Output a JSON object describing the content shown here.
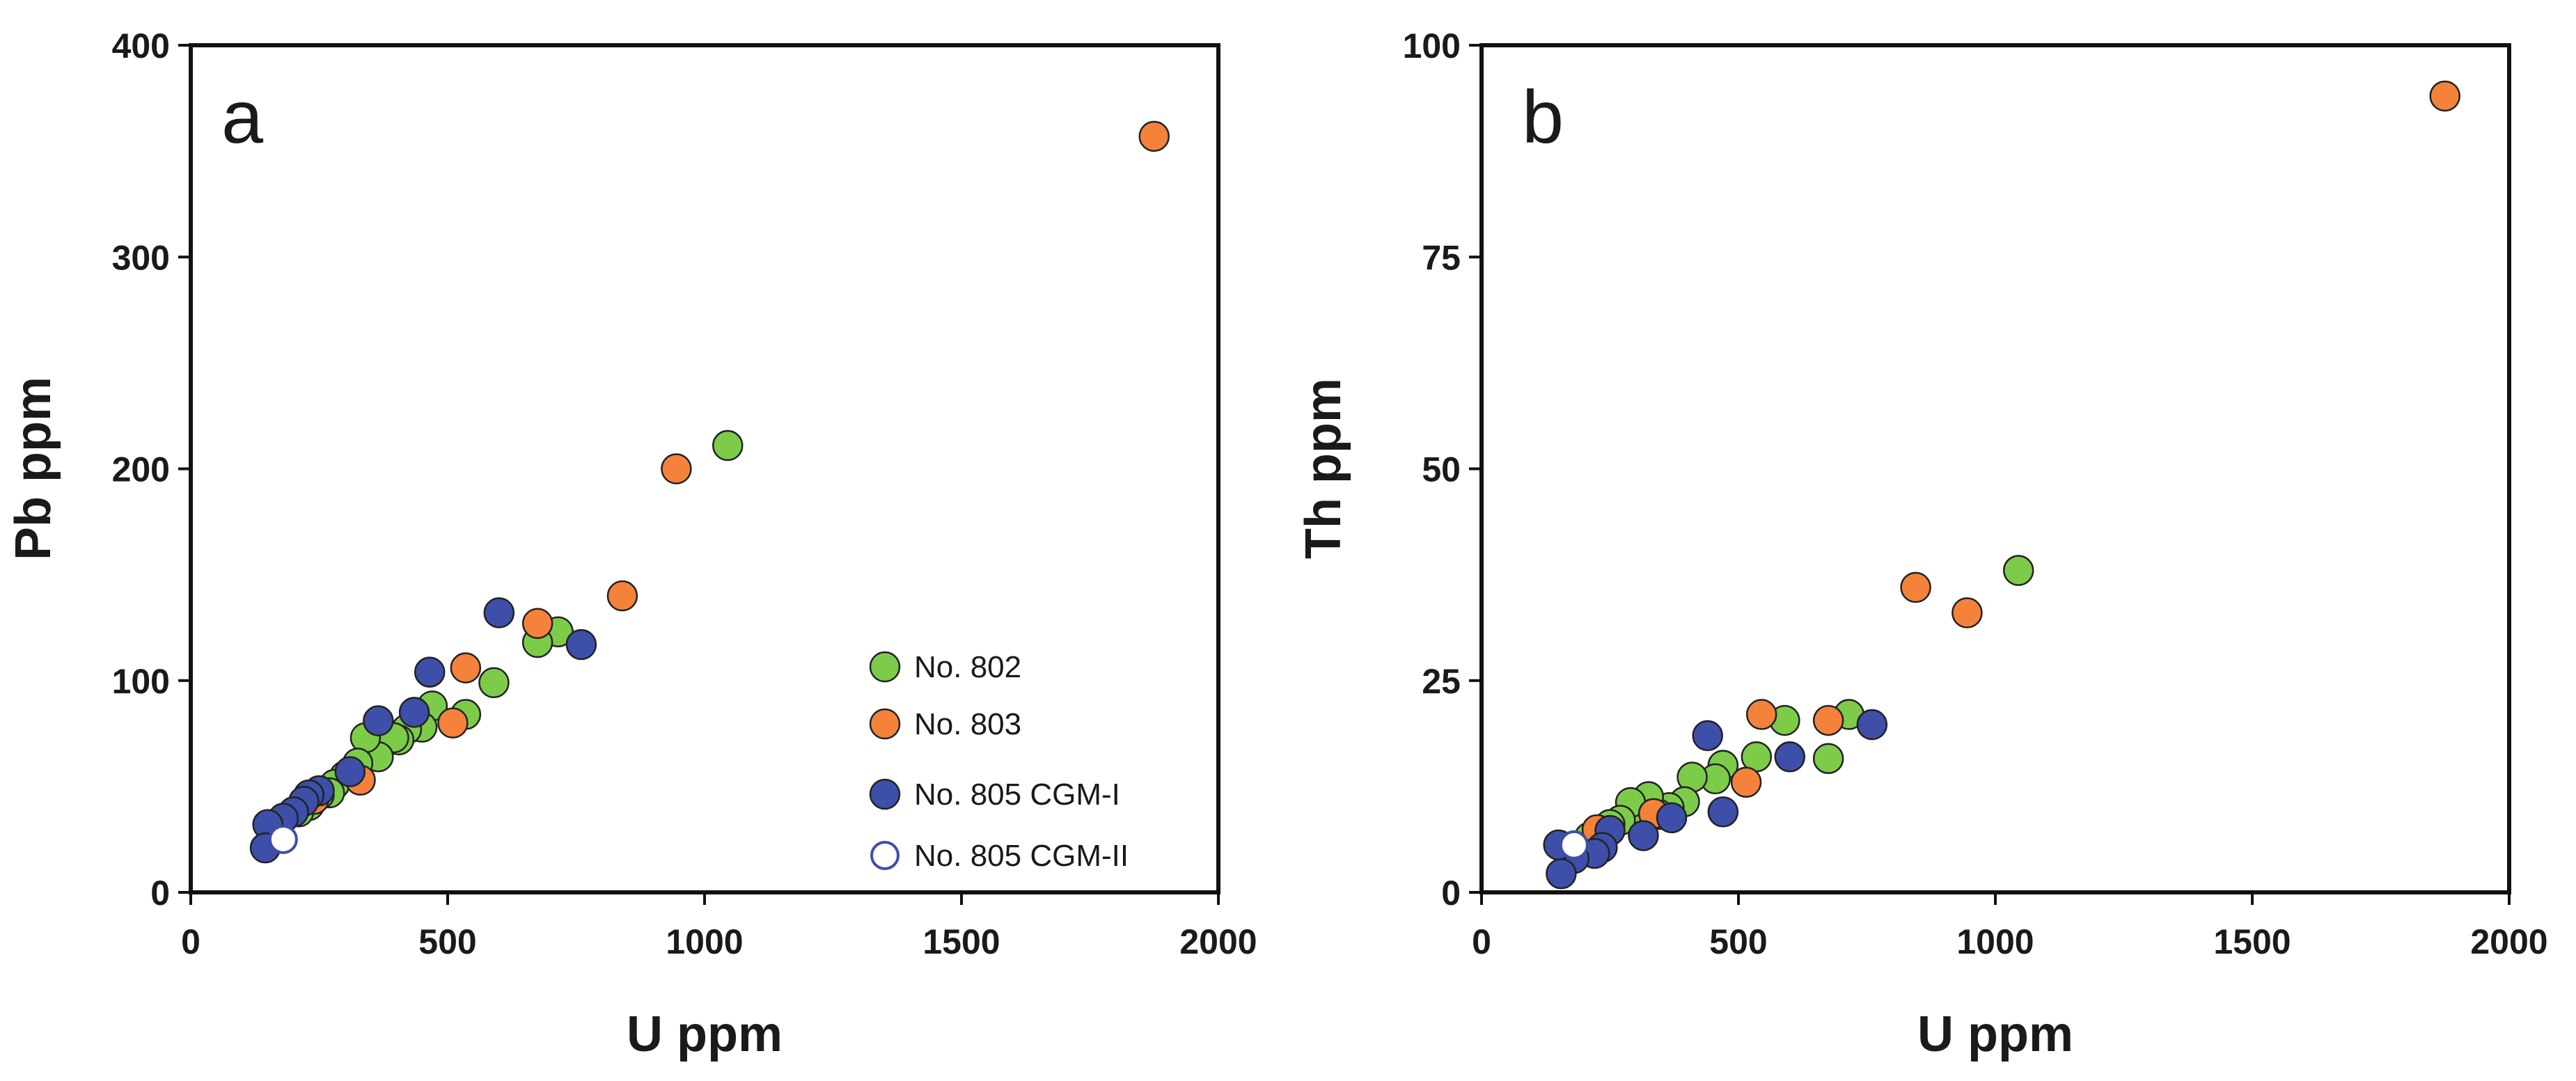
{
  "colors": {
    "no802": "#7ccc4a",
    "no803": "#f5823a",
    "no805_cgm1": "#3d4fa8",
    "no805_cgm2_stroke": "#3d4fa8",
    "marker_edge": "#222222"
  },
  "legend": {
    "items": [
      {
        "label": "No. 802",
        "series": "no802",
        "style": "filled"
      },
      {
        "label": "No. 803",
        "series": "no803",
        "style": "filled"
      },
      {
        "label": "No. 805 CGM-I",
        "series": "no805_cgm1",
        "style": "filled"
      },
      {
        "label": "No. 805 CGM-II",
        "series": "no805_cgm2",
        "style": "hollow"
      }
    ]
  },
  "chart_data": [
    {
      "type": "scatter",
      "panel_label": "a",
      "title": "",
      "xlabel": "U ppm",
      "ylabel": "Pb ppm",
      "xlim": [
        0,
        2000
      ],
      "ylim": [
        0,
        400
      ],
      "xticks": [
        0,
        500,
        1000,
        1500,
        2000
      ],
      "yticks": [
        0,
        100,
        200,
        300,
        400
      ],
      "legend_position": "bottom-right",
      "series": [
        {
          "name": "No. 802",
          "key": "no802",
          "points": [
            [
              1045,
              211
            ],
            [
              715,
              123
            ],
            [
              675,
              118
            ],
            [
              590,
              99
            ],
            [
              535,
              84
            ],
            [
              470,
              88
            ],
            [
              450,
              78
            ],
            [
              420,
              77
            ],
            [
              405,
              72
            ],
            [
              395,
              73
            ],
            [
              365,
              64
            ],
            [
              340,
              73
            ],
            [
              325,
              61
            ],
            [
              300,
              55
            ],
            [
              280,
              51
            ],
            [
              270,
              47
            ],
            [
              250,
              46
            ],
            [
              230,
              41
            ],
            [
              210,
              38
            ]
          ]
        },
        {
          "name": "No. 803",
          "key": "no803",
          "points": [
            [
              1875,
              357
            ],
            [
              945,
              200
            ],
            [
              840,
              140
            ],
            [
              675,
              127
            ],
            [
              535,
              106
            ],
            [
              510,
              80
            ],
            [
              330,
              53
            ],
            [
              240,
              44
            ]
          ]
        },
        {
          "name": "No. 805 CGM-I",
          "key": "no805_cgm1",
          "points": [
            [
              600,
              132
            ],
            [
              760,
              117
            ],
            [
              465,
              104
            ],
            [
              435,
              85
            ],
            [
              365,
              81
            ],
            [
              310,
              57
            ],
            [
              250,
              48
            ],
            [
              230,
              46
            ],
            [
              220,
              43
            ],
            [
              200,
              38
            ],
            [
              180,
              35
            ],
            [
              150,
              32
            ],
            [
              145,
              21
            ]
          ]
        },
        {
          "name": "No. 805 CGM-II",
          "key": "no805_cgm2",
          "points": [
            [
              180,
              25
            ]
          ]
        }
      ]
    },
    {
      "type": "scatter",
      "panel_label": "b",
      "title": "",
      "xlabel": "U ppm",
      "ylabel": "Th ppm",
      "xlim": [
        0,
        2000
      ],
      "ylim": [
        0,
        100
      ],
      "xticks": [
        0,
        500,
        1000,
        1500,
        2000
      ],
      "yticks": [
        0,
        25,
        50,
        75,
        100
      ],
      "series": [
        {
          "name": "No. 802",
          "key": "no802",
          "points": [
            [
              1045,
              38
            ],
            [
              715,
              21
            ],
            [
              675,
              15.8
            ],
            [
              590,
              20.3
            ],
            [
              535,
              16
            ],
            [
              470,
              15
            ],
            [
              455,
              13.4
            ],
            [
              410,
              13.6
            ],
            [
              395,
              10.7
            ],
            [
              365,
              10
            ],
            [
              345,
              9.2
            ],
            [
              325,
              11.3
            ],
            [
              300,
              9.5
            ],
            [
              290,
              10.6
            ],
            [
              270,
              8.5
            ],
            [
              250,
              8
            ],
            [
              230,
              7
            ],
            [
              210,
              6.5
            ]
          ]
        },
        {
          "name": "No. 803",
          "key": "no803",
          "points": [
            [
              1875,
              94
            ],
            [
              845,
              36
            ],
            [
              945,
              33
            ],
            [
              675,
              20.3
            ],
            [
              545,
              21
            ],
            [
              515,
              13
            ],
            [
              335,
              9.3
            ],
            [
              225,
              7.4
            ]
          ]
        },
        {
          "name": "No. 805 CGM-I",
          "key": "no805_cgm1",
          "points": [
            [
              440,
              18.5
            ],
            [
              600,
              16
            ],
            [
              760,
              19.8
            ],
            [
              470,
              9.5
            ],
            [
              370,
              8.8
            ],
            [
              315,
              6.7
            ],
            [
              250,
              7.3
            ],
            [
              235,
              5.3
            ],
            [
              220,
              4.6
            ],
            [
              180,
              4
            ],
            [
              150,
              5.6
            ],
            [
              155,
              2.2
            ]
          ]
        },
        {
          "name": "No. 805 CGM-II",
          "key": "no805_cgm2",
          "points": [
            [
              180,
              5.6
            ]
          ]
        }
      ]
    }
  ]
}
